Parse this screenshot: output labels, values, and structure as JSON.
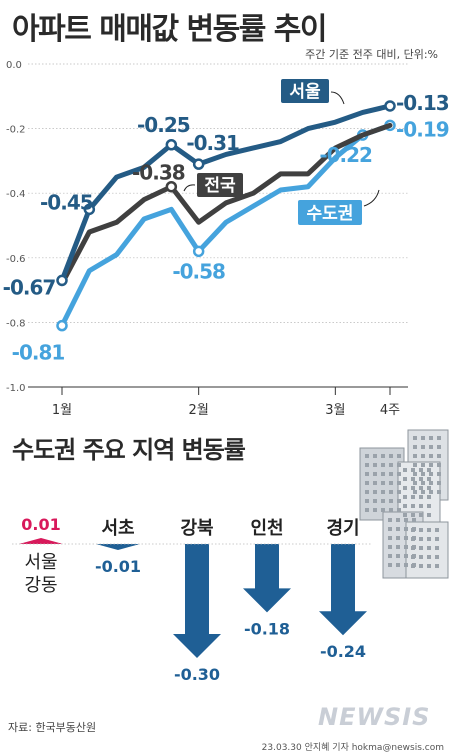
{
  "header": {
    "title": "아파트 매매값 변동률 추이",
    "unit_note": "주간 기준 전주 대비, 단위:%"
  },
  "section2": {
    "title": "수도권 주요 지역 변동률"
  },
  "footer": {
    "source": "자료: 한국부동산원",
    "credit": "23.03.30 안지혜 기자 hokma@newsis.com",
    "logo": "NEWSIS"
  },
  "colors": {
    "seoul": "#245b85",
    "national": "#404040",
    "capital": "#45a3dd",
    "positive": "#d8195b",
    "negative": "#1f5f95"
  },
  "chart_data": [
    {
      "type": "line",
      "title": "아파트 매매값 변동률 추이",
      "subtitle": "주간 기준 전주 대비, 단위:%",
      "ylim": [
        -1.0,
        0.0
      ],
      "y_ticks": [
        "0.0",
        "-0.2",
        "-0.4",
        "-0.6",
        "-0.8",
        "-1.0"
      ],
      "x_ticks": [
        {
          "label": "1월",
          "index": 0
        },
        {
          "label": "2월",
          "index": 5
        },
        {
          "label": "3월",
          "index": 10
        },
        {
          "label": "4주",
          "index": 12
        }
      ],
      "grid": true,
      "series": [
        {
          "name": "서울",
          "color_key": "seoul",
          "values": [
            -0.67,
            -0.45,
            -0.35,
            -0.32,
            -0.25,
            -0.31,
            -0.28,
            -0.26,
            -0.24,
            -0.2,
            -0.18,
            -0.15,
            -0.13
          ],
          "labels": [
            {
              "index": 0,
              "text": "-0.67"
            },
            {
              "index": 1,
              "text": "-0.45"
            },
            {
              "index": 4,
              "text": "-0.25"
            },
            {
              "index": 5,
              "text": "-0.31"
            },
            {
              "index": 12,
              "text": "-0.13"
            }
          ]
        },
        {
          "name": "전국",
          "color_key": "national",
          "values": [
            -0.68,
            -0.52,
            -0.49,
            -0.42,
            -0.38,
            -0.49,
            -0.43,
            -0.4,
            -0.34,
            -0.34,
            -0.26,
            -0.22,
            -0.19
          ],
          "labels": [
            {
              "index": 4,
              "text": "-0.38"
            }
          ]
        },
        {
          "name": "수도권",
          "color_key": "capital",
          "values": [
            -0.81,
            -0.64,
            -0.59,
            -0.48,
            -0.45,
            -0.58,
            -0.49,
            -0.44,
            -0.39,
            -0.38,
            -0.29,
            -0.22,
            -0.19
          ],
          "labels": [
            {
              "index": 0,
              "text": "-0.81"
            },
            {
              "index": 5,
              "text": "-0.58"
            },
            {
              "index": 11,
              "text": "-0.22"
            },
            {
              "index": 12,
              "text": "-0.19"
            }
          ]
        }
      ]
    },
    {
      "type": "bar",
      "title": "수도권 주요 지역 변동률",
      "categories": [
        "서울 강동",
        "서초",
        "강북",
        "인천",
        "경기"
      ],
      "values": [
        0.01,
        -0.01,
        -0.3,
        -0.18,
        -0.24
      ],
      "value_labels": [
        "0.01",
        "-0.01",
        "-0.30",
        "-0.18",
        "-0.24"
      ]
    }
  ]
}
